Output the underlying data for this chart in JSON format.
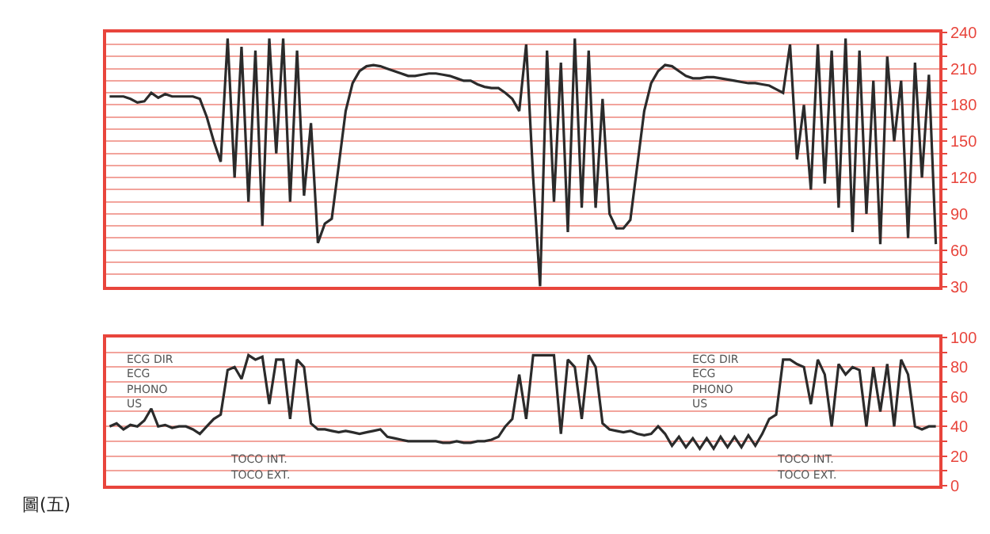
{
  "chart_data": [
    {
      "type": "line",
      "categories": [
        null,
        null,
        null,
        null,
        null,
        null,
        null,
        null,
        null,
        null,
        null,
        null,
        null,
        null,
        null,
        null,
        null,
        null,
        null,
        null,
        null,
        null,
        null,
        null,
        null,
        null,
        null,
        null,
        null,
        null,
        null,
        null,
        null,
        null,
        null,
        null,
        null,
        null,
        null,
        null,
        null,
        null,
        null,
        null,
        null,
        null,
        null,
        null,
        null,
        null,
        null,
        null,
        null,
        null,
        null,
        null,
        null,
        null,
        null,
        null,
        null,
        null,
        null,
        null,
        null,
        null,
        null,
        null,
        null,
        null,
        null,
        null,
        null,
        null,
        null,
        null,
        null,
        null,
        null,
        null,
        null,
        null,
        null,
        null,
        null,
        null,
        null,
        null,
        null,
        null,
        null,
        null,
        null,
        null,
        null,
        null,
        null,
        null,
        null,
        null,
        null,
        null,
        null,
        null,
        null,
        null,
        null,
        null,
        null,
        null,
        null,
        null,
        null,
        null,
        null,
        null,
        null,
        null,
        null,
        null
      ],
      "series": [
        {
          "color": "#2b2b2b",
          "values": [
            187,
            187,
            187,
            185,
            182,
            183,
            190,
            186,
            189,
            187,
            187,
            187,
            187,
            185,
            170,
            150,
            133,
            235,
            120,
            228,
            100,
            225,
            80,
            235,
            140,
            235,
            100,
            225,
            105,
            165,
            66,
            82,
            86,
            130,
            175,
            198,
            208,
            212,
            213,
            212,
            210,
            208,
            206,
            204,
            204,
            205,
            206,
            206,
            205,
            204,
            202,
            200,
            200,
            197,
            195,
            194,
            194,
            190,
            185,
            175,
            230,
            120,
            30,
            225,
            100,
            215,
            75,
            235,
            95,
            225,
            95,
            185,
            90,
            78,
            78,
            85,
            130,
            175,
            198,
            208,
            213,
            212,
            208,
            204,
            202,
            202,
            203,
            203,
            202,
            201,
            200,
            199,
            198,
            198,
            197,
            196,
            193,
            190,
            230,
            135,
            180,
            110,
            230,
            115,
            225,
            95,
            235,
            75,
            225,
            90,
            200,
            65,
            220,
            150,
            200,
            70,
            215,
            120,
            205,
            65
          ]
        }
      ],
      "ylim": [
        30,
        240
      ],
      "yticks": [
        30,
        {
          "value": 40,
          "label": null
        },
        {
          "value": 50,
          "label": null
        },
        60,
        {
          "value": 70,
          "label": null
        },
        {
          "value": 80,
          "label": null
        },
        90,
        {
          "value": 100,
          "label": null
        },
        {
          "value": 110,
          "label": null
        },
        120,
        {
          "value": 130,
          "label": null
        },
        {
          "value": 140,
          "label": null
        },
        150,
        {
          "value": 160,
          "label": null
        },
        {
          "value": 170,
          "label": null
        },
        180,
        {
          "value": 190,
          "label": null
        },
        {
          "value": 200,
          "label": null
        },
        210,
        {
          "value": 220,
          "label": null
        },
        {
          "value": 230,
          "label": null
        },
        240
      ],
      "grid": "y",
      "marker": "none",
      "line_style": "solid"
    },
    {
      "type": "line",
      "categories": [
        null,
        null,
        null,
        null,
        null,
        null,
        null,
        null,
        null,
        null,
        null,
        null,
        null,
        null,
        null,
        null,
        null,
        null,
        null,
        null,
        null,
        null,
        null,
        null,
        null,
        null,
        null,
        null,
        null,
        null,
        null,
        null,
        null,
        null,
        null,
        null,
        null,
        null,
        null,
        null,
        null,
        null,
        null,
        null,
        null,
        null,
        null,
        null,
        null,
        null,
        null,
        null,
        null,
        null,
        null,
        null,
        null,
        null,
        null,
        null,
        null,
        null,
        null,
        null,
        null,
        null,
        null,
        null,
        null,
        null,
        null,
        null,
        null,
        null,
        null,
        null,
        null,
        null,
        null,
        null,
        null,
        null,
        null,
        null,
        null,
        null,
        null,
        null,
        null,
        null,
        null,
        null,
        null,
        null,
        null,
        null,
        null,
        null,
        null,
        null,
        null,
        null,
        null,
        null,
        null,
        null,
        null,
        null,
        null,
        null,
        null,
        null,
        null,
        null,
        null,
        null,
        null,
        null,
        null,
        null
      ],
      "series": [
        {
          "color": "#2b2b2b",
          "values": [
            40,
            42,
            38,
            41,
            40,
            44,
            52,
            40,
            41,
            39,
            40,
            40,
            38,
            35,
            40,
            45,
            48,
            78,
            80,
            72,
            88,
            85,
            87,
            55,
            85,
            85,
            45,
            85,
            80,
            42,
            38,
            38,
            37,
            36,
            37,
            36,
            35,
            36,
            37,
            38,
            33,
            32,
            31,
            30,
            30,
            30,
            30,
            30,
            29,
            29,
            30,
            29,
            29,
            30,
            30,
            31,
            33,
            40,
            45,
            75,
            45,
            88,
            88,
            88,
            88,
            35,
            85,
            80,
            45,
            88,
            80,
            42,
            38,
            37,
            36,
            37,
            35,
            34,
            35,
            40,
            35,
            27,
            33,
            26,
            32,
            25,
            32,
            25,
            33,
            26,
            33,
            26,
            34,
            27,
            35,
            45,
            48,
            85,
            85,
            82,
            80,
            55,
            85,
            75,
            40,
            82,
            75,
            80,
            78,
            40,
            80,
            50,
            82,
            40,
            85,
            75,
            40,
            38,
            40,
            40
          ]
        }
      ],
      "ylim": [
        0,
        100
      ],
      "yticks": [
        0,
        {
          "value": 10,
          "label": null
        },
        20,
        {
          "value": 30,
          "label": null
        },
        40,
        {
          "value": 50,
          "label": null
        },
        60,
        {
          "value": 70,
          "label": null
        },
        80,
        {
          "value": 90,
          "label": null
        },
        100
      ],
      "grid": "y",
      "marker": "none",
      "line_style": "solid",
      "annotations": [
        "ECG DIR",
        "ECG",
        "PHONO",
        "US",
        "TOCO INT.",
        "TOCO EXT.",
        "ECG DIR",
        "ECG",
        "PHONO",
        "US",
        "TOCO INT.",
        "TOCO EXT.",
        "圖(五)"
      ]
    }
  ]
}
